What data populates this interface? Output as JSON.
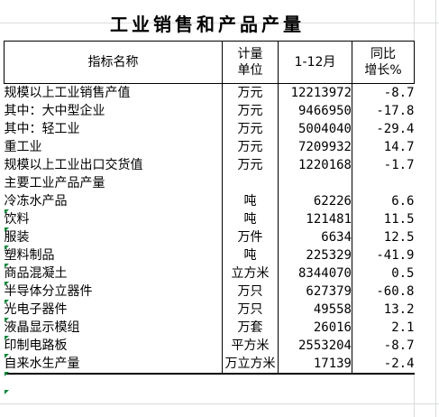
{
  "title": "工业销售和产品产量",
  "header": {
    "col_name": "指标名称",
    "col_unit_line1": "计量",
    "col_unit_line2": "单位",
    "col_period": "1-12月",
    "col_yoy_line1": "同比",
    "col_yoy_line2": "增长%"
  },
  "rows": [
    {
      "name": "规模以上工业销售产值",
      "unit": "万元",
      "value": "12213972",
      "yoy": "-8.7"
    },
    {
      "name": "其中：大中型企业",
      "unit": "万元",
      "value": "9466950",
      "yoy": "-17.8"
    },
    {
      "name": "其中：轻工业",
      "unit": "万元",
      "value": "5004040",
      "yoy": "-29.4"
    },
    {
      "name": "重工业",
      "unit": "万元",
      "value": "7209932",
      "yoy": "14.7"
    },
    {
      "name": "规模以上工业出口交货值",
      "unit": "万元",
      "value": "1220168",
      "yoy": "-1.7"
    },
    {
      "name": "主要工业产品产量",
      "unit": "",
      "value": "",
      "yoy": ""
    },
    {
      "name": "冷冻水产品",
      "unit": "吨",
      "value": "62226",
      "yoy": "6.6"
    },
    {
      "name": "饮料",
      "unit": "吨",
      "value": "121481",
      "yoy": "11.5"
    },
    {
      "name": "服装",
      "unit": "万件",
      "value": "6634",
      "yoy": "12.5"
    },
    {
      "name": "塑料制品",
      "unit": "吨",
      "value": "225329",
      "yoy": "-41.9"
    },
    {
      "name": "商品混凝土",
      "unit": "立方米",
      "value": "8344070",
      "yoy": "0.5"
    },
    {
      "name": "半导体分立器件",
      "unit": "万只",
      "value": "627379",
      "yoy": "-60.8"
    },
    {
      "name": "光电子器件",
      "unit": "万只",
      "value": "49558",
      "yoy": "13.2"
    },
    {
      "name": "液晶显示模组",
      "unit": "万套",
      "value": "26016",
      "yoy": "2.1"
    },
    {
      "name": "印制电路板",
      "unit": "平方米",
      "value": "2553204",
      "yoy": "-8.7"
    },
    {
      "name": "自来水生产量",
      "unit": "万立方米",
      "value": "17139",
      "yoy": "-2.4"
    }
  ],
  "colors": {
    "gridline": "#dadcdd",
    "error_marker": "#0e8a3a"
  }
}
